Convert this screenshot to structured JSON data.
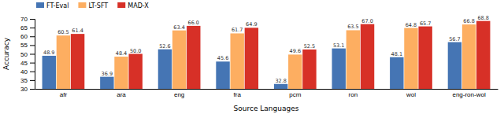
{
  "chart_data": {
    "type": "bar",
    "categories": [
      "afr",
      "ara",
      "eng",
      "fra",
      "pcm",
      "ron",
      "wol",
      "eng-ron-wol"
    ],
    "series": [
      {
        "name": "FT-Eval",
        "color": "#4575B4",
        "values": [
          48.9,
          36.9,
          52.6,
          45.6,
          32.8,
          53.1,
          48.1,
          56.7
        ]
      },
      {
        "name": "LT-SFT",
        "color": "#FDAE61",
        "values": [
          60.5,
          48.4,
          63.4,
          61.7,
          49.6,
          63.5,
          64.8,
          66.8
        ]
      },
      {
        "name": "MAD-X",
        "color": "#D73027",
        "values": [
          61.4,
          50.0,
          66.0,
          64.9,
          52.5,
          67.0,
          65.7,
          68.8
        ],
        "value_labels": [
          "61.4",
          "50.0",
          "66.0",
          "64.9",
          "52.5",
          "67.0",
          "65.7",
          "68.8"
        ]
      }
    ],
    "xlabel": "Source Languages",
    "ylabel": "Accuracy",
    "ylim": [
      30,
      70
    ],
    "yticks": [
      30,
      35,
      40,
      45,
      50,
      55,
      60,
      65,
      70
    ],
    "data_labels": true,
    "legend": "upper left",
    "grid": false
  }
}
